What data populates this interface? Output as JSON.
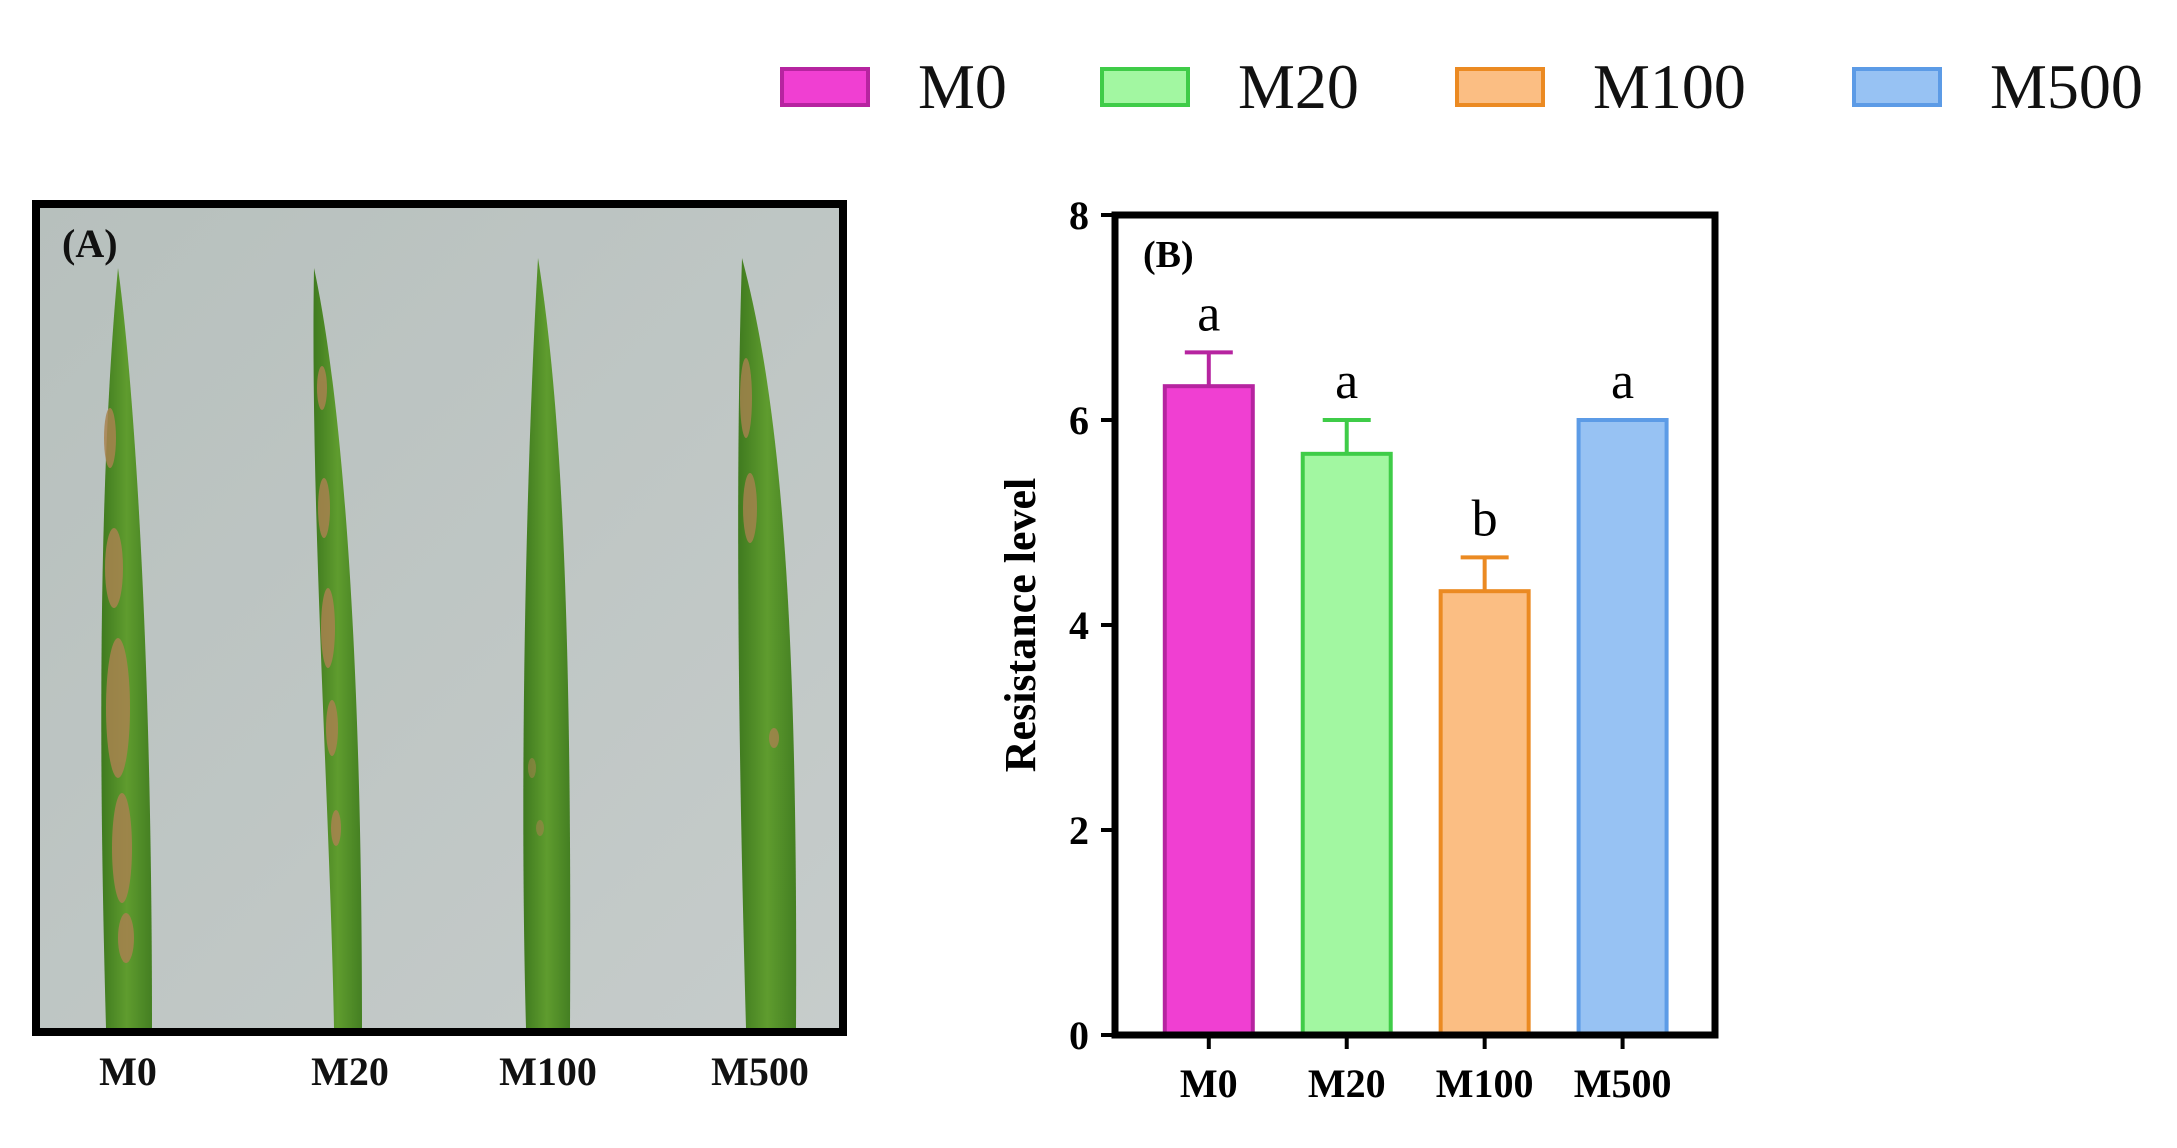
{
  "legend": {
    "items": [
      {
        "label": "M0",
        "color": "#f03fd2",
        "edge": "#b624a0"
      },
      {
        "label": "M20",
        "color": "#a2f7a1",
        "edge": "#3fcc48"
      },
      {
        "label": "M100",
        "color": "#fbbe83",
        "edge": "#eb8a22"
      },
      {
        "label": "M500",
        "color": "#97c2f3",
        "edge": "#5c9be6"
      }
    ]
  },
  "panel_a": {
    "tag": "(A)",
    "leaf_labels": [
      "M0",
      "M20",
      "M100",
      "M500"
    ],
    "colors": {
      "leaf": "#58962a",
      "leaf_dark": "#3f7a1f",
      "lesion": "#a8824f",
      "background": "#bcc4c3"
    }
  },
  "chart_data": {
    "type": "bar",
    "panel_tag": "(B)",
    "title": "",
    "xlabel": "",
    "ylabel": "Resistance level",
    "ylim": [
      0,
      8
    ],
    "yticks": [
      0,
      2,
      4,
      6,
      8
    ],
    "categories": [
      "M0",
      "M20",
      "M100",
      "M500"
    ],
    "values": [
      6.33,
      5.67,
      4.33,
      6.0
    ],
    "errors": [
      0.33,
      0.33,
      0.33,
      0
    ],
    "significance": [
      "a",
      "a",
      "b",
      "a"
    ],
    "colors": [
      "#f03fd2",
      "#a2f7a1",
      "#fbbe83",
      "#97c2f3"
    ],
    "edge_colors": [
      "#b624a0",
      "#3fcc48",
      "#eb8a22",
      "#5c9be6"
    ]
  }
}
